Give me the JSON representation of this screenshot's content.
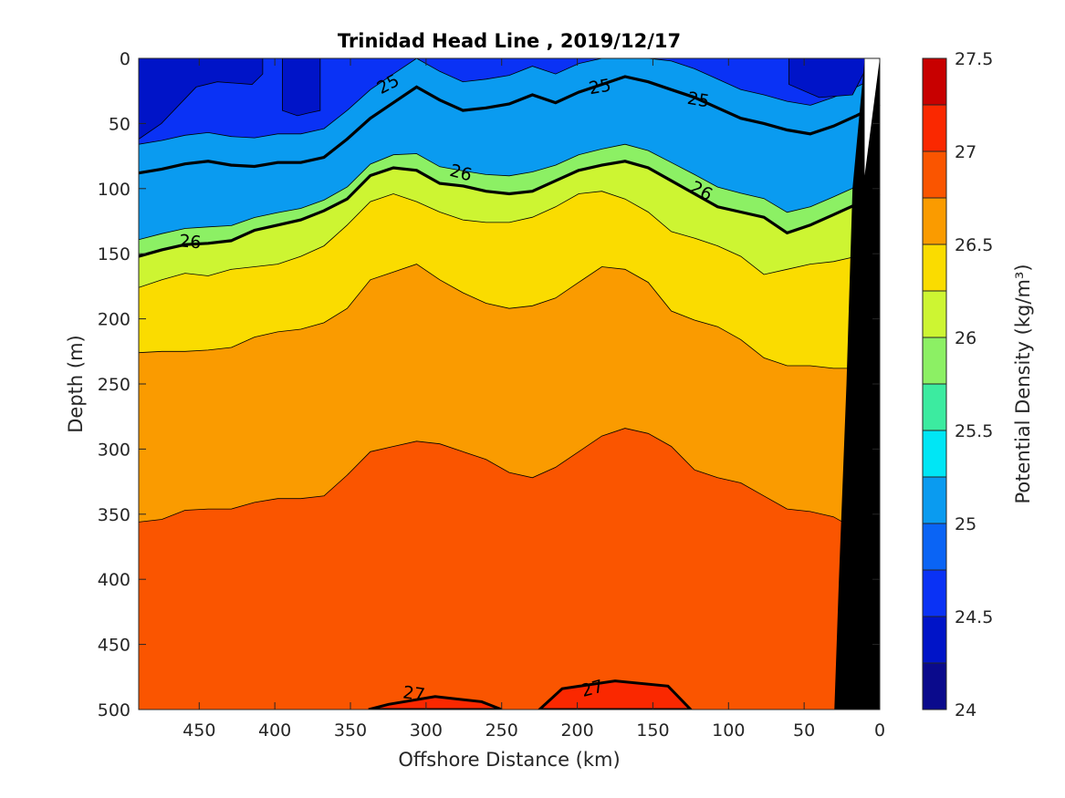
{
  "chart_data": {
    "type": "contour",
    "title": "Trinidad Head Line , 2019/12/17",
    "xlabel": "Offshore Distance (km)",
    "ylabel": "Depth (m)",
    "colorbar_label": "Potential Density (kg/m³)",
    "xlim": [
      490,
      0
    ],
    "ylim": [
      0,
      500
    ],
    "x_ticks": [
      450,
      400,
      350,
      300,
      250,
      200,
      150,
      100,
      50,
      0
    ],
    "y_ticks": [
      0,
      50,
      100,
      150,
      200,
      250,
      300,
      350,
      400,
      450,
      500
    ],
    "colorbar_range": [
      24,
      27.5
    ],
    "colorbar_ticks": [
      24,
      24.5,
      25,
      25.5,
      26,
      26.5,
      27,
      27.5
    ],
    "level_step": 0.25,
    "levels": [
      {
        "min": 24.0,
        "max": 24.25,
        "color": "#0a0a8c"
      },
      {
        "min": 24.25,
        "max": 24.5,
        "color": "#0014c8"
      },
      {
        "min": 24.5,
        "max": 24.75,
        "color": "#0a32f5"
      },
      {
        "min": 24.75,
        "max": 25.0,
        "color": "#0a64f5"
      },
      {
        "min": 25.0,
        "max": 25.25,
        "color": "#0a9bf0"
      },
      {
        "min": 25.25,
        "max": 25.5,
        "color": "#00e6f5"
      },
      {
        "min": 25.5,
        "max": 25.75,
        "color": "#3ceba0"
      },
      {
        "min": 25.75,
        "max": 26.0,
        "color": "#8cf064"
      },
      {
        "min": 26.0,
        "max": 26.25,
        "color": "#cdf532"
      },
      {
        "min": 26.25,
        "max": 26.5,
        "color": "#fadc00"
      },
      {
        "min": 26.5,
        "max": 26.75,
        "color": "#fa9b00"
      },
      {
        "min": 26.75,
        "max": 27.0,
        "color": "#fa5500"
      },
      {
        "min": 27.0,
        "max": 27.25,
        "color": "#fa2800"
      },
      {
        "min": 27.25,
        "max": 27.5,
        "color": "#c80000"
      }
    ],
    "isopycnals": [
      {
        "level": 26.75,
        "depth": [
          356,
          354,
          347,
          346,
          346,
          341,
          338,
          338,
          336,
          320,
          302,
          298,
          294,
          296,
          302,
          308,
          318,
          322,
          314,
          302,
          290,
          284,
          288,
          298,
          316,
          322,
          326,
          336,
          346,
          348,
          352,
          362,
          376
        ]
      },
      {
        "level": 26.5,
        "depth": [
          226,
          225,
          225,
          224,
          222,
          214,
          210,
          208,
          203,
          192,
          170,
          164,
          158,
          170,
          180,
          188,
          192,
          190,
          184,
          172,
          160,
          162,
          172,
          194,
          201,
          206,
          216,
          230,
          236,
          236,
          238,
          238,
          244
        ]
      },
      {
        "level": 26.25,
        "depth": [
          176,
          170,
          165,
          167,
          162,
          160,
          158,
          152,
          144,
          128,
          110,
          104,
          110,
          118,
          124,
          126,
          126,
          122,
          114,
          104,
          102,
          108,
          118,
          133,
          138,
          144,
          152,
          166,
          162,
          158,
          156,
          152,
          148
        ]
      },
      {
        "level": 26.0,
        "depth": [
          152,
          147,
          143,
          142,
          140,
          132,
          128,
          124,
          117,
          108,
          90,
          84,
          86,
          96,
          98,
          102,
          104,
          102,
          94,
          86,
          82,
          79,
          84,
          94,
          104,
          114,
          118,
          122,
          134,
          128,
          120,
          112,
          104
        ]
      },
      {
        "level": 25.0,
        "depth": [
          88,
          85,
          81,
          79,
          82,
          83,
          80,
          80,
          76,
          62,
          46,
          34,
          22,
          32,
          40,
          38,
          35,
          28,
          34,
          26,
          20,
          14,
          18,
          24,
          30,
          38,
          46,
          50,
          55,
          58,
          52,
          44,
          35
        ]
      }
    ],
    "thick_contours": [
      {
        "level": 25,
        "label": "25"
      },
      {
        "level": 26,
        "label": "26"
      },
      {
        "level": 27,
        "label": "27"
      }
    ],
    "surface_low_patches": [
      {
        "x": [
          490,
          475,
          452,
          438,
          415,
          408
        ],
        "depth": [
          62,
          50,
          22,
          18,
          20,
          12
        ]
      },
      {
        "x": [
          395,
          385,
          378,
          370
        ],
        "depth": [
          40,
          44,
          42,
          40
        ]
      },
      {
        "x": [
          60,
          40,
          18,
          10
        ],
        "depth": [
          20,
          30,
          28,
          10
        ]
      }
    ],
    "deep_27_patches": [
      {
        "x_start": 338,
        "x_end": 250,
        "top_depth": 490
      },
      {
        "x_start": 225,
        "x_end": 125,
        "top_depth": 478
      }
    ]
  }
}
